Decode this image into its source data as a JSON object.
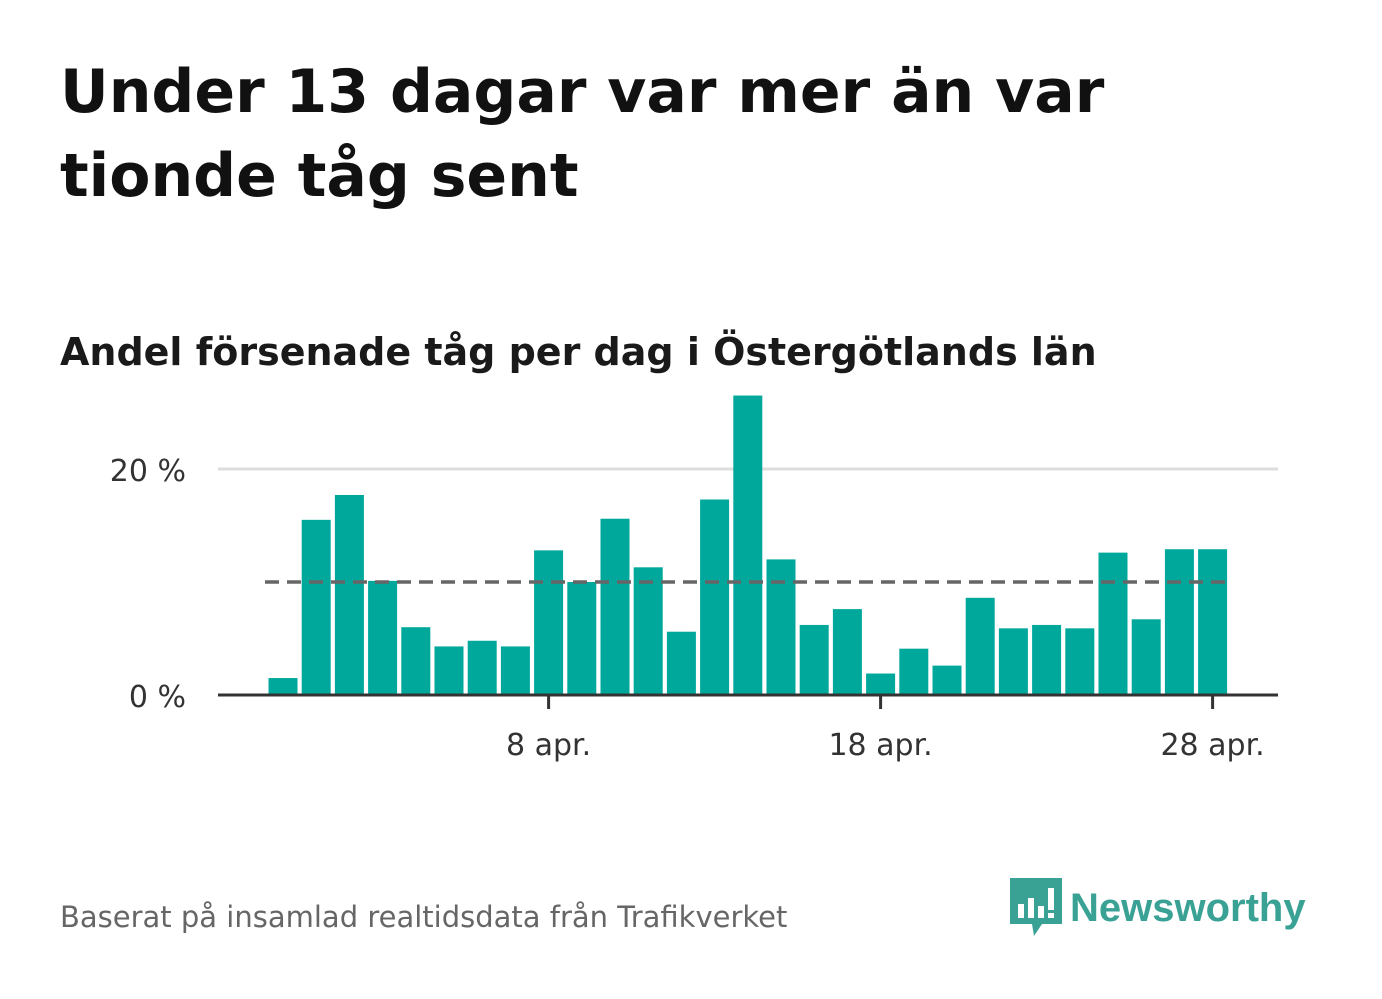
{
  "title": "Under 13 dagar var mer än var tionde tåg sent",
  "subtitle": "Andel försenade tåg per dag i Östergötlands län",
  "source": "Baserat på insamlad realtidsdata från Trafikverket",
  "brand": "Newsworthy",
  "colors": {
    "bar": "#00a89c",
    "reference_line": "#666666",
    "gridline": "#dddddd",
    "brand": "#3aa295"
  },
  "chart_data": {
    "type": "bar",
    "x_start_day": 30,
    "x_end_day": 59,
    "values": [
      1.5,
      15.5,
      17.7,
      10.1,
      6.0,
      4.3,
      4.8,
      4.3,
      12.8,
      10.0,
      15.6,
      11.3,
      5.6,
      17.3,
      26.5,
      12.0,
      6.2,
      7.6,
      1.9,
      4.1,
      2.6,
      8.6,
      5.9,
      6.2,
      5.9,
      12.6,
      6.7,
      12.9,
      12.9
    ],
    "reference_value": 10,
    "ylim": [
      0,
      30
    ],
    "yticks": [
      {
        "value": 0,
        "label": "0 %"
      },
      {
        "value": 20,
        "label": "20 %"
      }
    ],
    "xticks": [
      {
        "day": 38,
        "label": "8 apr."
      },
      {
        "day": 48,
        "label": "18 apr."
      },
      {
        "day": 58,
        "label": "28 apr."
      }
    ],
    "grid": true,
    "legend": "none"
  }
}
